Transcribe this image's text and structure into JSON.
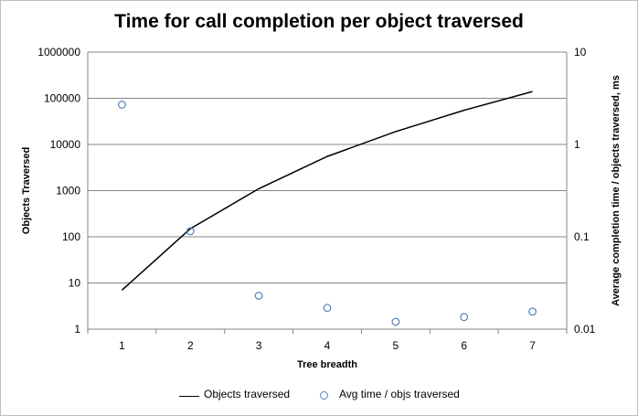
{
  "chart_data": {
    "type": "line",
    "title": "Time for call completion per object traversed",
    "xlabel": "Tree breadth",
    "ylabel": "Objects Traversed",
    "y2label": "Average completion time / objects traversed, ms",
    "categories": [
      "1",
      "2",
      "3",
      "4",
      "5",
      "6",
      "7"
    ],
    "ylim": [
      1,
      1000000
    ],
    "y_scale": "log",
    "y_ticks": [
      "1",
      "10",
      "100",
      "1000",
      "10000",
      "100000",
      "1000000"
    ],
    "y2lim": [
      0.01,
      10
    ],
    "y2_scale": "log",
    "y2_ticks": [
      "0.01",
      "0.1",
      "1",
      "10"
    ],
    "grid": true,
    "legend_position": "bottom",
    "series": [
      {
        "name": "Objects traversed",
        "type": "line",
        "axis": "left",
        "color": "#000000",
        "values": [
          7,
          150,
          1100,
          5500,
          19000,
          55000,
          140000
        ]
      },
      {
        "name": "Avg time / objs traversed",
        "type": "scatter",
        "axis": "right",
        "color": "#4f81bd",
        "marker": "hollow-circle",
        "values": [
          2.7,
          0.115,
          0.023,
          0.017,
          0.012,
          0.0135,
          0.0155
        ]
      }
    ]
  }
}
